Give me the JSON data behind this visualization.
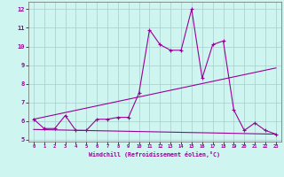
{
  "xlabel": "Windchill (Refroidissement éolien,°C)",
  "x_values": [
    0,
    1,
    2,
    3,
    4,
    5,
    6,
    7,
    8,
    9,
    10,
    11,
    12,
    13,
    14,
    15,
    16,
    17,
    18,
    19,
    20,
    21,
    22,
    23
  ],
  "line1_y": [
    6.1,
    5.6,
    5.6,
    6.3,
    5.5,
    5.5,
    6.1,
    6.1,
    6.2,
    6.2,
    7.5,
    10.9,
    10.1,
    9.8,
    9.8,
    12.0,
    8.3,
    10.1,
    10.3,
    6.6,
    5.5,
    5.9,
    5.5,
    5.3
  ],
  "trend1_x": [
    0,
    23
  ],
  "trend1_y": [
    6.1,
    8.85
  ],
  "trend2_x": [
    0,
    23
  ],
  "trend2_y": [
    5.55,
    5.3
  ],
  "line_color": "#990099",
  "bg_color": "#cef5f0",
  "grid_color": "#aacccc",
  "ylim": [
    4.9,
    12.4
  ],
  "xlim": [
    -0.5,
    23.5
  ],
  "yticks": [
    5,
    6,
    7,
    8,
    9,
    10,
    11,
    12
  ],
  "xticks": [
    0,
    1,
    2,
    3,
    4,
    5,
    6,
    7,
    8,
    9,
    10,
    11,
    12,
    13,
    14,
    15,
    16,
    17,
    18,
    19,
    20,
    21,
    22,
    23
  ]
}
